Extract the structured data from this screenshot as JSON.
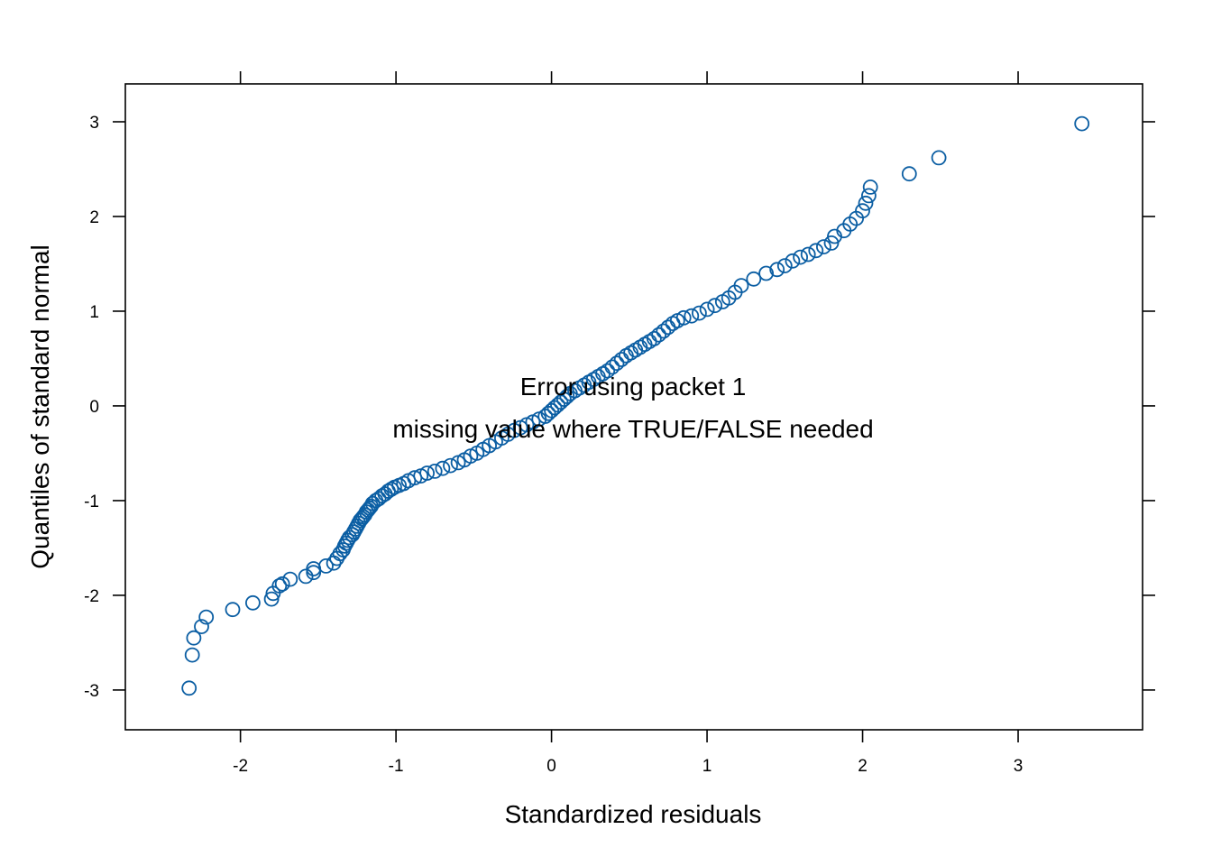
{
  "chart_data": {
    "type": "scatter",
    "title": "",
    "xlabel": "Standardized residuals",
    "ylabel": "Quantiles of standard normal",
    "xlim": [
      -2.74,
      3.8
    ],
    "ylim": [
      -3.42,
      3.4
    ],
    "x_ticks": [
      -2,
      -1,
      0,
      1,
      2,
      3
    ],
    "y_ticks": [
      -3,
      -2,
      -1,
      0,
      1,
      2,
      3
    ],
    "x_tick_labels": [
      "-2",
      "-1",
      "0",
      "1",
      "2",
      "3"
    ],
    "y_tick_labels": [
      "-3",
      "-2",
      "-1",
      "0",
      "1",
      "2",
      "3"
    ],
    "grid": false,
    "point_color": "#0b5ea3",
    "annotations": [
      "Error using packet 1",
      "missing value where TRUE/FALSE needed"
    ],
    "series": [
      {
        "x": [
          -2.33,
          -2.31,
          -2.3,
          -2.25,
          -2.22,
          -2.05,
          -1.92,
          -1.8,
          -1.79,
          -1.75,
          -1.73,
          -1.68,
          -1.58,
          -1.53,
          -1.53,
          -1.45,
          -1.4,
          -1.38,
          -1.36,
          -1.34,
          -1.33,
          -1.32,
          -1.31,
          -1.3,
          -1.28,
          -1.27,
          -1.26,
          -1.25,
          -1.24,
          -1.23,
          -1.22,
          -1.21,
          -1.2,
          -1.19,
          -1.18,
          -1.17,
          -1.16,
          -1.15,
          -1.13,
          -1.11,
          -1.09,
          -1.07,
          -1.05,
          -1.03,
          -1.01,
          -0.98,
          -0.95,
          -0.92,
          -0.88,
          -0.84,
          -0.8,
          -0.75,
          -0.7,
          -0.65,
          -0.6,
          -0.56,
          -0.52,
          -0.48,
          -0.44,
          -0.4,
          -0.36,
          -0.32,
          -0.28,
          -0.24,
          -0.2,
          -0.16,
          -0.12,
          -0.08,
          -0.04,
          -0.02,
          0.0,
          0.02,
          0.04,
          0.06,
          0.08,
          0.1,
          0.12,
          0.15,
          0.18,
          0.21,
          0.24,
          0.27,
          0.3,
          0.33,
          0.36,
          0.39,
          0.42,
          0.45,
          0.48,
          0.51,
          0.54,
          0.57,
          0.6,
          0.63,
          0.66,
          0.69,
          0.72,
          0.75,
          0.78,
          0.81,
          0.85,
          0.9,
          0.95,
          1.0,
          1.05,
          1.1,
          1.14,
          1.18,
          1.22,
          1.3,
          1.38,
          1.45,
          1.5,
          1.55,
          1.6,
          1.65,
          1.7,
          1.75,
          1.8,
          1.82,
          1.88,
          1.92,
          1.96,
          2.0,
          2.02,
          2.04,
          2.05,
          2.3,
          2.49,
          3.41
        ],
        "y": [
          -2.98,
          -2.63,
          -2.45,
          -2.33,
          -2.23,
          -2.15,
          -2.08,
          -2.04,
          -1.98,
          -1.9,
          -1.88,
          -1.83,
          -1.8,
          -1.76,
          -1.72,
          -1.69,
          -1.66,
          -1.61,
          -1.56,
          -1.52,
          -1.48,
          -1.45,
          -1.42,
          -1.39,
          -1.36,
          -1.33,
          -1.3,
          -1.27,
          -1.24,
          -1.21,
          -1.19,
          -1.17,
          -1.15,
          -1.12,
          -1.1,
          -1.08,
          -1.06,
          -1.03,
          -1.0,
          -0.98,
          -0.95,
          -0.93,
          -0.9,
          -0.88,
          -0.86,
          -0.84,
          -0.82,
          -0.79,
          -0.76,
          -0.74,
          -0.71,
          -0.69,
          -0.66,
          -0.63,
          -0.6,
          -0.57,
          -0.53,
          -0.5,
          -0.46,
          -0.42,
          -0.38,
          -0.34,
          -0.3,
          -0.26,
          -0.23,
          -0.2,
          -0.17,
          -0.14,
          -0.11,
          -0.08,
          -0.05,
          -0.02,
          0.01,
          0.04,
          0.07,
          0.1,
          0.13,
          0.16,
          0.19,
          0.22,
          0.25,
          0.28,
          0.31,
          0.34,
          0.37,
          0.41,
          0.45,
          0.49,
          0.53,
          0.56,
          0.59,
          0.62,
          0.65,
          0.68,
          0.71,
          0.75,
          0.79,
          0.83,
          0.87,
          0.9,
          0.93,
          0.95,
          0.98,
          1.02,
          1.06,
          1.1,
          1.14,
          1.2,
          1.27,
          1.34,
          1.4,
          1.44,
          1.48,
          1.53,
          1.57,
          1.6,
          1.64,
          1.68,
          1.72,
          1.79,
          1.85,
          1.92,
          1.98,
          2.06,
          2.14,
          2.22,
          2.31,
          2.45,
          2.62,
          2.98
        ]
      }
    ]
  }
}
